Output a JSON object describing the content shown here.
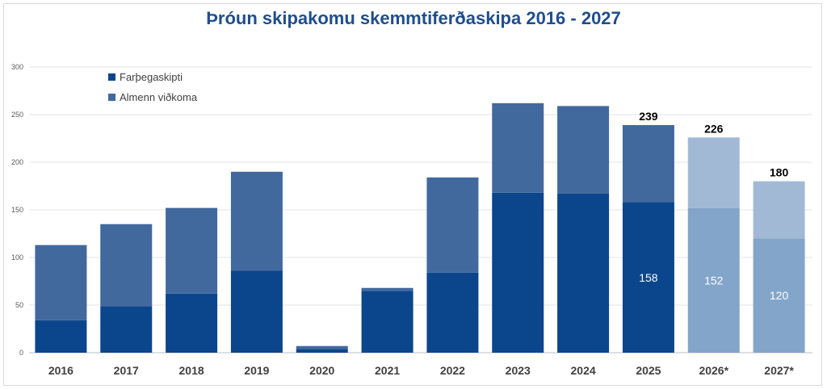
{
  "chart_data": {
    "type": "bar",
    "stacked": true,
    "title": "Þróun skipakomu skemmtiferðaskipa 2016 - 2027",
    "categories": [
      "2016",
      "2017",
      "2018",
      "2019",
      "2020",
      "2021",
      "2022",
      "2023",
      "2024",
      "2025",
      "2026*",
      "2027*"
    ],
    "series": [
      {
        "name": "Farþegaskipti",
        "values": [
          34,
          49,
          62,
          86,
          4,
          65,
          84,
          168,
          167,
          158,
          152,
          120
        ],
        "color": "#0b468c"
      },
      {
        "name": "Almenn viðkoma",
        "values": [
          79,
          86,
          90,
          104,
          3,
          3,
          100,
          94,
          92,
          81,
          74,
          60
        ],
        "color": "#41699e"
      }
    ],
    "projected_categories": [
      "2026*",
      "2027*"
    ],
    "projected_colors": {
      "Farþegaskipti": "#84a5ca",
      "Almenn viðkoma": "#a2b9d6"
    },
    "total_labels": [
      {
        "category": "2025",
        "text": "239"
      },
      {
        "category": "2026*",
        "text": "226"
      },
      {
        "category": "2027*",
        "text": "180"
      }
    ],
    "inner_labels": [
      {
        "category": "2025",
        "text": "158"
      },
      {
        "category": "2026*",
        "text": "152"
      },
      {
        "category": "2027*",
        "text": "120"
      }
    ],
    "ylim": [
      0,
      300
    ],
    "yticks": [
      0,
      50,
      100,
      150,
      200,
      250,
      300
    ],
    "grid": true,
    "legend_position": "top-left",
    "xlabel": "",
    "ylabel": ""
  }
}
